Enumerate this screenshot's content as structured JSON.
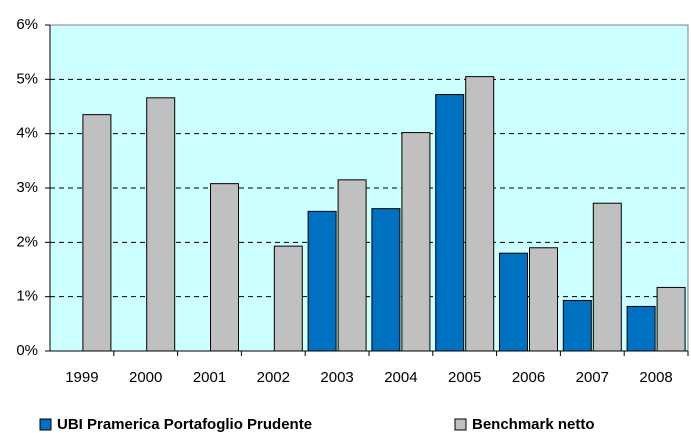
{
  "chart_data": {
    "type": "bar",
    "categories": [
      "1999",
      "2000",
      "2001",
      "2002",
      "2003",
      "2004",
      "2005",
      "2006",
      "2007",
      "2008"
    ],
    "series": [
      {
        "name": "UBI Pramerica Portafoglio Prudente",
        "color": "#0070c0",
        "values": [
          null,
          null,
          null,
          null,
          2.57,
          2.62,
          4.72,
          1.8,
          0.93,
          0.82
        ]
      },
      {
        "name": "Benchmark netto",
        "color": "#c0c0c0",
        "values": [
          4.35,
          4.66,
          3.08,
          1.93,
          3.15,
          4.02,
          5.05,
          1.9,
          2.72,
          1.17
        ]
      }
    ],
    "ylim": [
      0,
      6
    ],
    "yticks": [
      {
        "value": 0,
        "label": "0%"
      },
      {
        "value": 1,
        "label": "1%"
      },
      {
        "value": 2,
        "label": "2%"
      },
      {
        "value": 3,
        "label": "3%"
      },
      {
        "value": 4,
        "label": "4%"
      },
      {
        "value": 5,
        "label": "5%"
      },
      {
        "value": 6,
        "label": "6%"
      }
    ],
    "grid": true,
    "legend": "bottom",
    "background": "#ccffff"
  }
}
